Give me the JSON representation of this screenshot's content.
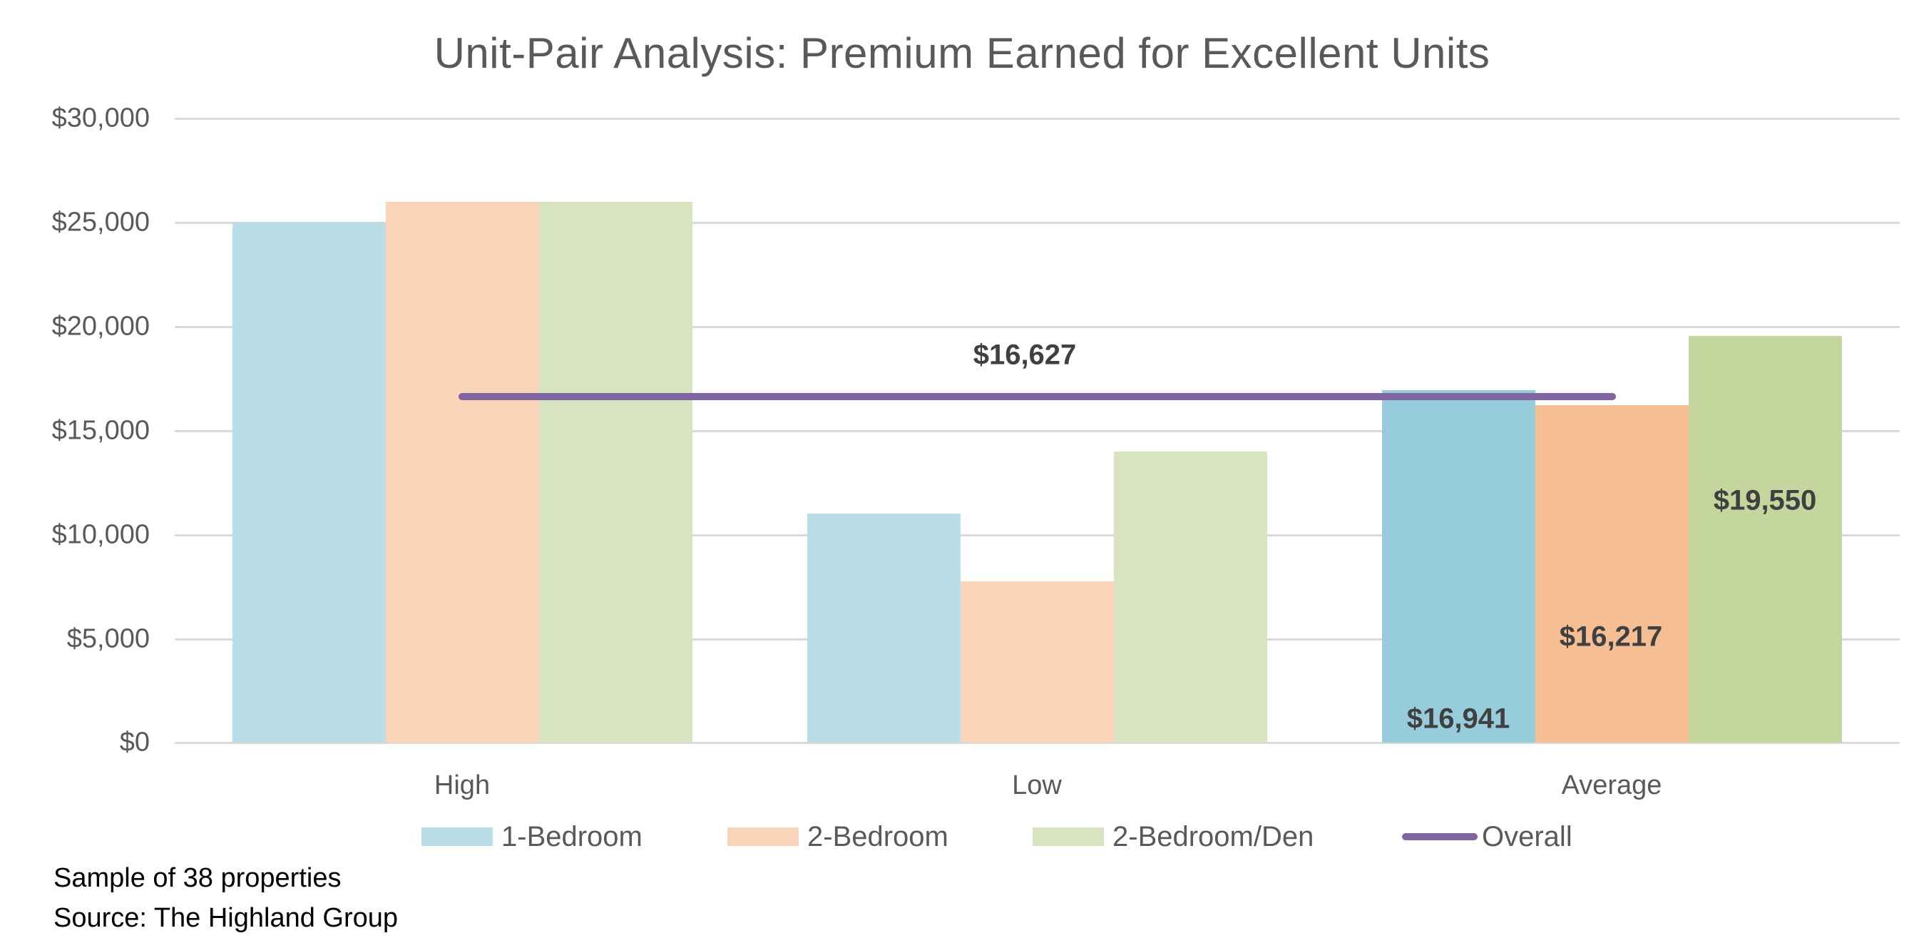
{
  "chart_data": {
    "type": "bar",
    "title": "Unit-Pair Analysis: Premium Earned for Excellent Units",
    "xlabel": "",
    "ylabel": "",
    "ylim": [
      0,
      30000
    ],
    "yticks": [
      "$0",
      "$5,000",
      "$10,000",
      "$15,000",
      "$20,000",
      "$25,000",
      "$30,000"
    ],
    "grid": true,
    "legend_position": "bottom",
    "categories": [
      "High",
      "Low",
      "Average"
    ],
    "series": [
      {
        "name": "1-Bedroom",
        "type": "bar",
        "color": "#b9dee7",
        "values": [
          25000,
          11000,
          16941
        ]
      },
      {
        "name": "2-Bedroom",
        "type": "bar",
        "color": "#f9d4b8",
        "values": [
          26000,
          7750,
          16217
        ]
      },
      {
        "name": "2-Bedroom/Den",
        "type": "bar",
        "color": "#d8e4c0",
        "values": [
          26000,
          14000,
          19550
        ]
      },
      {
        "name": "Overall",
        "type": "line",
        "color": "#8064a2",
        "values": [
          16627,
          16627,
          16627
        ]
      }
    ],
    "highlight_colors": {
      "1-Bedroom": "#96ccdb",
      "2-Bedroom": "#f6bf93",
      "2-Bedroom/Den": "#c4d69e"
    },
    "data_labels": {
      "overall": "$16,627",
      "average_1_bedroom": "$16,941",
      "average_2_bedroom": "$16,217",
      "average_2_bedroom_den": "$19,550"
    },
    "annotations": [
      "Sample of 38 properties",
      "Source: The Highland Group"
    ]
  },
  "header": {
    "title": "Unit-Pair Analysis: Premium Earned for Excellent Units"
  },
  "axis": {
    "y_ticks": [
      {
        "label": "$30,000",
        "y": 166
      },
      {
        "label": "$25,000",
        "y": 312
      },
      {
        "label": "$20,000",
        "y": 458
      },
      {
        "label": "$15,000",
        "y": 604
      },
      {
        "label": "$10,000",
        "y": 750
      },
      {
        "label": "$5,000",
        "y": 896
      },
      {
        "label": "$0",
        "y": 1041
      }
    ],
    "categories": [
      "High",
      "Low",
      "Average"
    ]
  },
  "labels": {
    "overall": "$16,627",
    "avg_1br": "$16,941",
    "avg_2br": "$16,217",
    "avg_2brden": "$19,550"
  },
  "legend": {
    "items": [
      {
        "label": "1-Bedroom",
        "color": "#b9dee7"
      },
      {
        "label": "2-Bedroom",
        "color": "#f9d4b8"
      },
      {
        "label": "2-Bedroom/Den",
        "color": "#d8e4c0"
      },
      {
        "label": "Overall",
        "color": "#8064a2"
      }
    ]
  },
  "footnotes": {
    "sample": "Sample of 38 properties",
    "source": "Source: The Highland Group"
  }
}
